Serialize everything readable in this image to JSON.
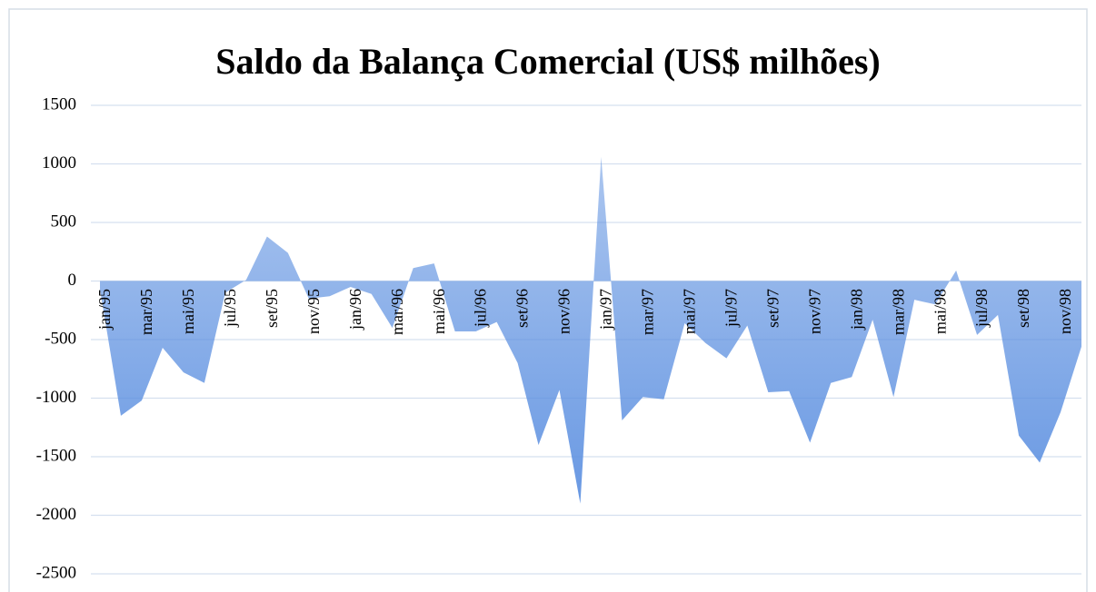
{
  "chart_data": {
    "type": "area",
    "title": "Saldo da Balança Comercial (US$  milhões)",
    "categories": [
      "jan/95",
      null,
      "mar/95",
      null,
      "mai/95",
      null,
      "jul/95",
      null,
      "set/95",
      null,
      "nov/95",
      null,
      "jan/96",
      null,
      "mar/96",
      null,
      "mai/96",
      null,
      "jul/96",
      null,
      "set/96",
      null,
      "nov/96",
      null,
      "jan/97",
      null,
      "mar/97",
      null,
      "mai/97",
      null,
      "jul/97",
      null,
      "set/97",
      null,
      "nov/97",
      null,
      "jan/98",
      null,
      "mar/98",
      null,
      "mai/98",
      null,
      "jul/98",
      null,
      "set/98",
      null,
      "nov/98",
      null
    ],
    "values": [
      -70,
      -1150,
      -1020,
      -570,
      -780,
      -870,
      -100,
      10,
      380,
      240,
      -150,
      -130,
      -50,
      -110,
      -400,
      110,
      150,
      -430,
      -430,
      -350,
      -700,
      -1400,
      -930,
      -1900,
      1060,
      -1190,
      -990,
      -1010,
      -360,
      -530,
      -660,
      -380,
      -950,
      -940,
      -1380,
      -870,
      -820,
      -330,
      -990,
      -160,
      -200,
      90,
      -460,
      -290,
      -1320,
      -1550,
      -1120,
      -560
    ],
    "color": "#5b8fe0",
    "ylim": [
      -2500,
      1500
    ],
    "yticks": [
      1500,
      1000,
      500,
      0,
      -500,
      -1000,
      -1500,
      -2000,
      -2500
    ],
    "grid": true
  }
}
